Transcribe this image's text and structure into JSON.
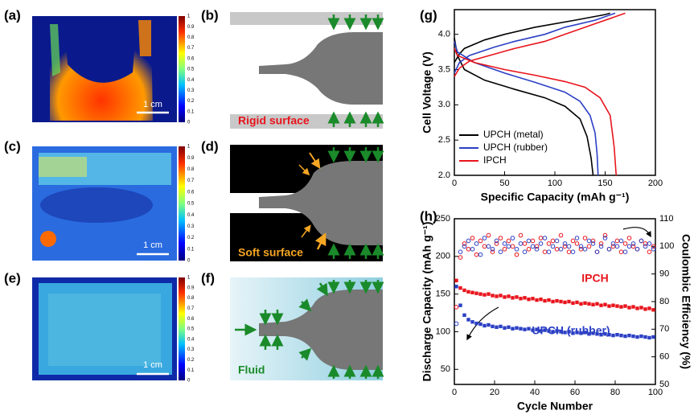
{
  "panels": [
    "(a)",
    "(b)",
    "(c)",
    "(d)",
    "(e)",
    "(f)",
    "(g)",
    "(h)"
  ],
  "colorbar_ticks": [
    0,
    0.1,
    0.2,
    0.3,
    0.4,
    0.5,
    0.6,
    0.7,
    0.8,
    0.9,
    1
  ],
  "scale_bar": "1 cm",
  "annotations": {
    "rigid": "Rigid surface",
    "soft": "Soft surface",
    "fluid": "Fluid"
  },
  "chart_data": [
    {
      "type": "line",
      "xlabel": "Specific Capacity (mAh g⁻¹)",
      "ylabel": "Cell Voltage (V)",
      "xlim": [
        0,
        200
      ],
      "xticks": [
        0,
        50,
        100,
        150,
        200
      ],
      "ylim": [
        2.0,
        4.35
      ],
      "yticks": [
        {
          "value": 2,
          "label": "2.0"
        },
        2.5,
        {
          "value": 3,
          "label": "3.0"
        },
        3.5,
        {
          "value": 4,
          "label": "4.0"
        }
      ],
      "legend": "lower-left",
      "series": [
        {
          "name": "UPCH (metal)",
          "color": "#000000",
          "x": [
            0,
            5,
            10,
            30,
            50,
            80,
            120,
            150,
            155,
            null,
            0,
            3,
            10,
            30,
            60,
            90,
            110,
            125,
            132,
            136,
            138
          ],
          "values": [
            3.6,
            3.72,
            3.8,
            3.92,
            4.0,
            4.1,
            4.2,
            4.28,
            4.3,
            null,
            3.95,
            3.7,
            3.5,
            3.35,
            3.22,
            3.1,
            2.98,
            2.8,
            2.55,
            2.25,
            2.0
          ]
        },
        {
          "name": "UPCH (rubber)",
          "color": "#2b3fc4",
          "x": [
            0,
            5,
            15,
            40,
            60,
            90,
            110,
            140,
            160,
            null,
            0,
            3,
            20,
            50,
            80,
            110,
            125,
            135,
            140,
            142,
            143
          ],
          "values": [
            3.45,
            3.6,
            3.7,
            3.82,
            3.9,
            4.0,
            4.1,
            4.2,
            4.3,
            null,
            3.9,
            3.75,
            3.6,
            3.45,
            3.32,
            3.18,
            3.05,
            2.85,
            2.6,
            2.3,
            2.0
          ]
        },
        {
          "name": "IPCH",
          "color": "#e8141c",
          "x": [
            0,
            5,
            15,
            40,
            60,
            90,
            110,
            140,
            170,
            null,
            0,
            3,
            20,
            50,
            80,
            110,
            130,
            145,
            155,
            159,
            161
          ],
          "values": [
            3.4,
            3.52,
            3.62,
            3.72,
            3.8,
            3.9,
            4.0,
            4.15,
            4.3,
            null,
            3.8,
            3.7,
            3.6,
            3.5,
            3.42,
            3.33,
            3.25,
            3.1,
            2.85,
            2.4,
            2.0
          ]
        }
      ]
    },
    {
      "type": "scatter",
      "xlabel": "Cycle Number",
      "ylabel": "Discharge Capacity (mAh g⁻¹)",
      "y2label": "Coulombic Efficiency (%)",
      "xlim": [
        0,
        100
      ],
      "xticks": [
        0,
        20,
        40,
        60,
        80,
        100
      ],
      "ylim": [
        30,
        250
      ],
      "yticks": [
        50,
        100,
        150,
        200,
        250
      ],
      "y2lim": [
        50,
        110
      ],
      "y2ticks": [
        50,
        60,
        70,
        80,
        90,
        100,
        110
      ],
      "x": [
        1,
        3,
        5,
        7,
        9,
        11,
        13,
        15,
        17,
        19,
        21,
        23,
        25,
        27,
        29,
        31,
        33,
        35,
        37,
        39,
        41,
        43,
        45,
        47,
        49,
        51,
        53,
        55,
        57,
        59,
        61,
        63,
        65,
        67,
        69,
        71,
        73,
        75,
        77,
        79,
        81,
        83,
        85,
        87,
        89,
        91,
        93,
        95,
        97,
        99
      ],
      "series": [
        {
          "name": "IPCH",
          "color": "#e8141c",
          "marker": "square",
          "values": [
            168,
            158,
            155,
            153,
            152,
            151,
            150,
            149,
            150,
            148,
            147,
            148,
            146,
            147,
            145,
            146,
            144,
            145,
            143,
            144,
            142,
            143,
            141,
            142,
            140,
            141,
            140,
            139,
            140,
            138,
            139,
            137,
            138,
            137,
            136,
            137,
            135,
            136,
            134,
            135,
            134,
            133,
            134,
            132,
            133,
            131,
            132,
            130,
            131,
            129
          ]
        },
        {
          "name": "UPCH (rubber)",
          "color": "#2b3fc4",
          "marker": "square",
          "values": [
            160,
            135,
            122,
            116,
            113,
            111,
            110,
            108,
            109,
            107,
            106,
            107,
            105,
            106,
            104,
            105,
            104,
            103,
            104,
            102,
            103,
            101,
            102,
            101,
            100,
            101,
            100,
            99,
            100,
            98,
            99,
            98,
            99,
            97,
            98,
            97,
            96,
            97,
            96,
            95,
            96,
            95,
            94,
            95,
            94,
            93,
            94,
            93,
            92,
            93
          ]
        },
        {
          "color": "#e8141c",
          "marker": "circle",
          "axis": "y2",
          "values": [
            78,
            96,
            101,
            99,
            103,
            97,
            102,
            100,
            104,
            98,
            101,
            103,
            99,
            102,
            100,
            97,
            104,
            101,
            99,
            102,
            100,
            103,
            98,
            101,
            102,
            99,
            104,
            100,
            98,
            102,
            101,
            99,
            103,
            100,
            102,
            98,
            101,
            104,
            99,
            100,
            102,
            98,
            101,
            103,
            100,
            99,
            102,
            101,
            98,
            100
          ]
        },
        {
          "color": "#2b3fc4",
          "marker": "circle",
          "axis": "y2",
          "values": [
            72,
            98,
            100,
            102,
            99,
            101,
            97,
            103,
            100,
            99,
            102,
            98,
            101,
            100,
            103,
            99,
            101,
            98,
            102,
            100,
            99,
            101,
            103,
            98,
            100,
            102,
            99,
            101,
            100,
            98,
            103,
            100,
            99,
            102,
            101,
            98,
            100,
            103,
            99,
            101,
            100,
            102,
            98,
            100,
            101,
            99,
            102,
            100,
            101,
            99
          ]
        }
      ]
    }
  ]
}
